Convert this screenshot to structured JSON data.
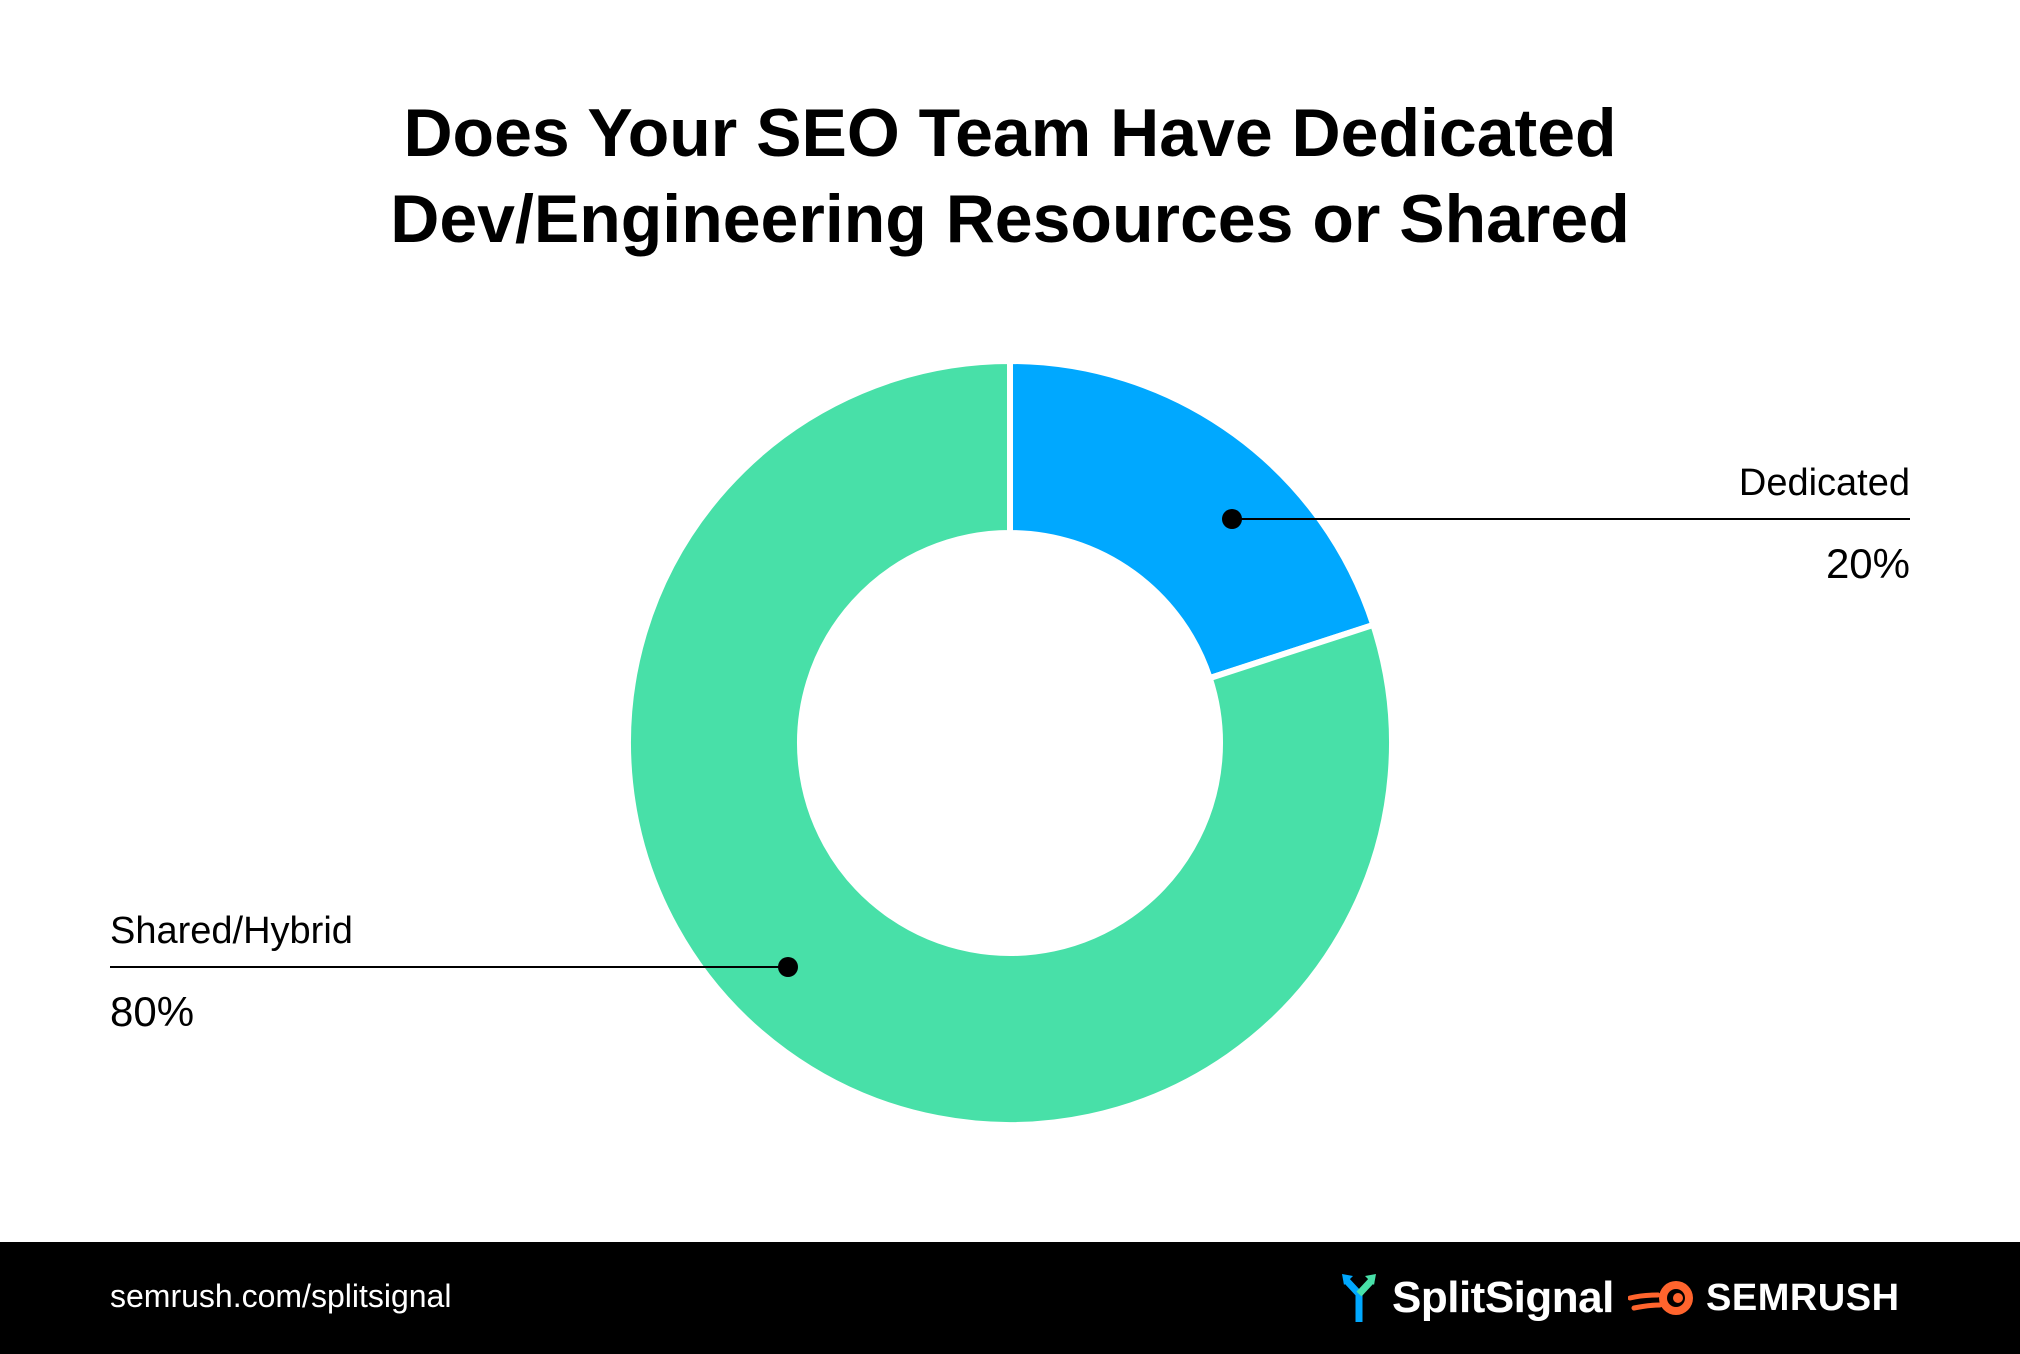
{
  "chart_data": {
    "type": "pie",
    "title_lines": [
      "Does Your SEO Team Have Dedicated",
      "Dev/Engineering Resources or Shared"
    ],
    "slices": [
      {
        "label": "Dedicated",
        "value": 20,
        "value_label": "20%",
        "color": "#00a8ff"
      },
      {
        "label": "Shared/Hybrid",
        "value": 80,
        "value_label": "80%",
        "color": "#48e0a8"
      }
    ],
    "donut": true
  },
  "footer": {
    "url": "semrush.com/splitsignal",
    "splitsignal_logo": "SplitSignal",
    "semrush_logo": "SEMRUSH",
    "background": "#000000"
  }
}
